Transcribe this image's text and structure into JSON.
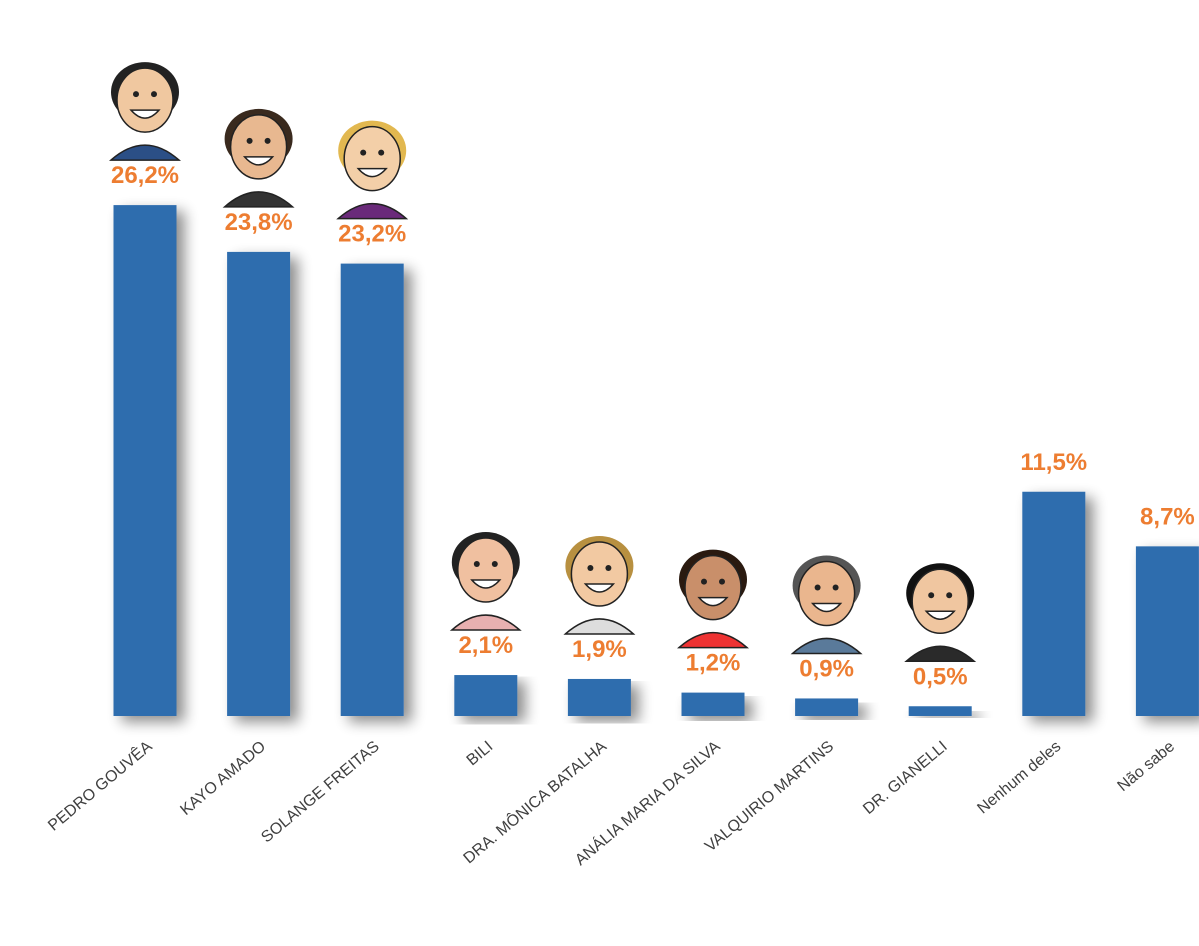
{
  "chart_data": {
    "type": "bar",
    "categories": [
      "PEDRO GOUVÊA",
      "KAYO AMADO",
      "SOLANGE FREITAS",
      "BILI",
      "DRA. MÔNICA BATALHA",
      "ANÁLIA MARIA DA SILVA",
      "VALQUIRIO MARTINS",
      "DR. GIANELLI",
      "Nenhum deles",
      "Não sabe"
    ],
    "values": [
      26.2,
      23.8,
      23.2,
      2.1,
      1.9,
      1.2,
      0.9,
      0.5,
      11.5,
      8.7
    ],
    "value_labels": [
      "26,2%",
      "23,8%",
      "23,2%",
      "2,1%",
      "1,9%",
      "1,2%",
      "0,9%",
      "0,5%",
      "11,5%",
      "8,7%"
    ],
    "color": "#2E6DAE",
    "label_color": "#ED7D31"
  }
}
